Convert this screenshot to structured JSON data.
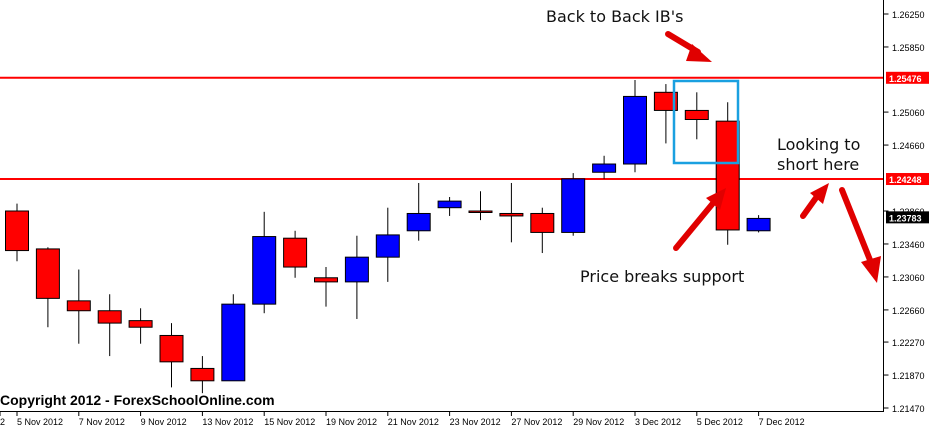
{
  "chart_data": {
    "type": "candlestick",
    "x_ticks": [
      "5 Nov 2012",
      "7 Nov 2012",
      "9 Nov 2012",
      "13 Nov 2012",
      "15 Nov 2012",
      "19 Nov 2012",
      "21 Nov 2012",
      "23 Nov 2012",
      "27 Nov 2012",
      "29 Nov 2012",
      "3 Dec 2012",
      "5 Dec 2012",
      "7 Dec 2012"
    ],
    "x_partial_label": "2",
    "y_ticks": [
      "1.26250",
      "1.25850",
      "1.25060",
      "1.24660",
      "1.23860",
      "1.23460",
      "1.23060",
      "1.22660",
      "1.22270",
      "1.21870",
      "1.21470"
    ],
    "y_range": [
      1.2147,
      1.2625
    ],
    "price_labels": {
      "current": "1.23783",
      "resistance": "1.25476",
      "support": "1.24248"
    },
    "levels": {
      "resistance": 1.25476,
      "support": 1.24248
    },
    "candles": [
      {
        "o": 1.2386,
        "h": 1.2395,
        "l": 1.2325,
        "c": 1.2338
      },
      {
        "o": 1.234,
        "h": 1.2342,
        "l": 1.2245,
        "c": 1.228
      },
      {
        "o": 1.2277,
        "h": 1.2315,
        "l": 1.2225,
        "c": 1.2265
      },
      {
        "o": 1.2265,
        "h": 1.2285,
        "l": 1.221,
        "c": 1.225
      },
      {
        "o": 1.2253,
        "h": 1.2268,
        "l": 1.2225,
        "c": 1.2245
      },
      {
        "o": 1.2235,
        "h": 1.225,
        "l": 1.2172,
        "c": 1.2203
      },
      {
        "o": 1.2195,
        "h": 1.221,
        "l": 1.2165,
        "c": 1.218
      },
      {
        "o": 1.218,
        "h": 1.2285,
        "l": 1.218,
        "c": 1.2273
      },
      {
        "o": 1.2273,
        "h": 1.2385,
        "l": 1.2262,
        "c": 1.2355
      },
      {
        "o": 1.2353,
        "h": 1.2362,
        "l": 1.2305,
        "c": 1.2318
      },
      {
        "o": 1.2305,
        "h": 1.2318,
        "l": 1.227,
        "c": 1.23
      },
      {
        "o": 1.23,
        "h": 1.2356,
        "l": 1.2255,
        "c": 1.233
      },
      {
        "o": 1.233,
        "h": 1.239,
        "l": 1.23,
        "c": 1.2357
      },
      {
        "o": 1.2362,
        "h": 1.242,
        "l": 1.235,
        "c": 1.2383
      },
      {
        "o": 1.239,
        "h": 1.2403,
        "l": 1.238,
        "c": 1.2398
      },
      {
        "o": 1.2386,
        "h": 1.241,
        "l": 1.2375,
        "c": 1.2385
      },
      {
        "o": 1.2383,
        "h": 1.242,
        "l": 1.2348,
        "c": 1.238
      },
      {
        "o": 1.2383,
        "h": 1.239,
        "l": 1.2335,
        "c": 1.236
      },
      {
        "o": 1.236,
        "h": 1.2432,
        "l": 1.2356,
        "c": 1.2425
      },
      {
        "o": 1.2433,
        "h": 1.2453,
        "l": 1.2425,
        "c": 1.2443
      },
      {
        "o": 1.2443,
        "h": 1.2545,
        "l": 1.2433,
        "c": 1.2525
      },
      {
        "o": 1.253,
        "h": 1.254,
        "l": 1.2468,
        "c": 1.2508
      },
      {
        "o": 1.2508,
        "h": 1.253,
        "l": 1.2473,
        "c": 1.2497
      },
      {
        "o": 1.2495,
        "h": 1.2518,
        "l": 1.2345,
        "c": 1.2363
      },
      {
        "o": 1.2362,
        "h": 1.2381,
        "l": 1.236,
        "c": 1.2377
      }
    ],
    "highlight_box_candles": [
      21,
      22
    ],
    "colors": {
      "bull": "#0000ff",
      "bear": "#ff0000",
      "level": "#ff0000",
      "box": "#1aa0e0",
      "arrow": "#e00000",
      "axis_tag": "#ff0000",
      "price_tag": "#000000"
    }
  },
  "annotations": {
    "ib": "Back to Back IB's",
    "look_line1": "Looking to",
    "look_line2": "short here",
    "breaks": "Price breaks support"
  },
  "copyright": "Copyright 2012 - ForexSchoolOnline.com"
}
